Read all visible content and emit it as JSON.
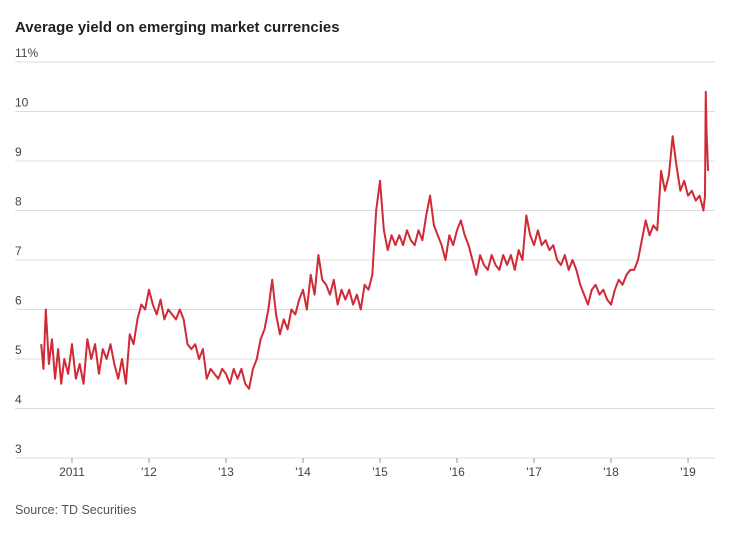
{
  "chart_data": {
    "type": "line",
    "title": "Average yield on emerging market currencies",
    "source": "Source: TD Securities",
    "xlim": [
      2010.26,
      2019.35
    ],
    "xticks": [
      {
        "value": 2011,
        "label": "2011"
      },
      {
        "value": 2012,
        "label": "'12"
      },
      {
        "value": 2013,
        "label": "'13"
      },
      {
        "value": 2014,
        "label": "'14"
      },
      {
        "value": 2015,
        "label": "'15"
      },
      {
        "value": 2016,
        "label": "'16"
      },
      {
        "value": 2017,
        "label": "'17"
      },
      {
        "value": 2018,
        "label": "'18"
      },
      {
        "value": 2019,
        "label": "'19"
      }
    ],
    "ylim": [
      3,
      11
    ],
    "yticks": [
      3,
      4,
      5,
      6,
      7,
      8,
      9,
      10,
      {
        "value": 11,
        "label": "11%"
      }
    ],
    "grid": true,
    "series": [
      {
        "color": "#cf2a35",
        "x": [
          2010.6,
          2010.63,
          2010.66,
          2010.7,
          2010.74,
          2010.78,
          2010.82,
          2010.86,
          2010.9,
          2010.95,
          2011.0,
          2011.05,
          2011.1,
          2011.15,
          2011.2,
          2011.25,
          2011.3,
          2011.35,
          2011.4,
          2011.45,
          2011.5,
          2011.55,
          2011.6,
          2011.65,
          2011.7,
          2011.75,
          2011.8,
          2011.85,
          2011.9,
          2011.95,
          2012.0,
          2012.05,
          2012.1,
          2012.15,
          2012.2,
          2012.25,
          2012.3,
          2012.35,
          2012.4,
          2012.45,
          2012.5,
          2012.55,
          2012.6,
          2012.65,
          2012.7,
          2012.75,
          2012.8,
          2012.85,
          2012.9,
          2012.95,
          2013.0,
          2013.05,
          2013.1,
          2013.15,
          2013.2,
          2013.25,
          2013.3,
          2013.35,
          2013.4,
          2013.45,
          2013.5,
          2013.55,
          2013.6,
          2013.65,
          2013.7,
          2013.75,
          2013.8,
          2013.85,
          2013.9,
          2013.95,
          2014.0,
          2014.05,
          2014.1,
          2014.15,
          2014.2,
          2014.25,
          2014.3,
          2014.35,
          2014.4,
          2014.45,
          2014.5,
          2014.55,
          2014.6,
          2014.65,
          2014.7,
          2014.75,
          2014.8,
          2014.85,
          2014.9,
          2014.95,
          2015.0,
          2015.05,
          2015.1,
          2015.15,
          2015.2,
          2015.25,
          2015.3,
          2015.35,
          2015.4,
          2015.45,
          2015.5,
          2015.55,
          2015.6,
          2015.65,
          2015.7,
          2015.75,
          2015.8,
          2015.85,
          2015.9,
          2015.95,
          2016.0,
          2016.05,
          2016.1,
          2016.15,
          2016.2,
          2016.25,
          2016.3,
          2016.35,
          2016.4,
          2016.45,
          2016.5,
          2016.55,
          2016.6,
          2016.65,
          2016.7,
          2016.75,
          2016.8,
          2016.85,
          2016.9,
          2016.95,
          2017.0,
          2017.05,
          2017.1,
          2017.15,
          2017.2,
          2017.25,
          2017.3,
          2017.35,
          2017.4,
          2017.45,
          2017.5,
          2017.55,
          2017.6,
          2017.65,
          2017.7,
          2017.75,
          2017.8,
          2017.85,
          2017.9,
          2017.95,
          2018.0,
          2018.05,
          2018.1,
          2018.15,
          2018.2,
          2018.25,
          2018.3,
          2018.35,
          2018.4,
          2018.45,
          2018.5,
          2018.55,
          2018.6,
          2018.65,
          2018.7,
          2018.75,
          2018.8,
          2018.85,
          2018.9,
          2018.95,
          2019.0,
          2019.05,
          2019.1,
          2019.15,
          2019.2,
          2019.22,
          2019.23,
          2019.24,
          2019.26
        ],
        "values": [
          5.3,
          4.8,
          6.0,
          4.9,
          5.4,
          4.6,
          5.2,
          4.5,
          5.0,
          4.7,
          5.3,
          4.6,
          4.9,
          4.5,
          5.4,
          5.0,
          5.3,
          4.7,
          5.2,
          5.0,
          5.3,
          4.9,
          4.6,
          5.0,
          4.5,
          5.5,
          5.3,
          5.8,
          6.1,
          6.0,
          6.4,
          6.1,
          5.9,
          6.2,
          5.8,
          6.0,
          5.9,
          5.8,
          6.0,
          5.8,
          5.3,
          5.2,
          5.3,
          5.0,
          5.2,
          4.6,
          4.8,
          4.7,
          4.6,
          4.8,
          4.7,
          4.5,
          4.8,
          4.6,
          4.8,
          4.5,
          4.4,
          4.8,
          5.0,
          5.4,
          5.6,
          6.0,
          6.6,
          5.9,
          5.5,
          5.8,
          5.6,
          6.0,
          5.9,
          6.2,
          6.4,
          6.0,
          6.7,
          6.3,
          7.1,
          6.6,
          6.5,
          6.3,
          6.6,
          6.1,
          6.4,
          6.2,
          6.4,
          6.1,
          6.3,
          6.0,
          6.5,
          6.4,
          6.7,
          8.0,
          8.6,
          7.6,
          7.2,
          7.5,
          7.3,
          7.5,
          7.3,
          7.6,
          7.4,
          7.3,
          7.6,
          7.4,
          7.9,
          8.3,
          7.7,
          7.5,
          7.3,
          7.0,
          7.5,
          7.3,
          7.6,
          7.8,
          7.5,
          7.3,
          7.0,
          6.7,
          7.1,
          6.9,
          6.8,
          7.1,
          6.9,
          6.8,
          7.1,
          6.9,
          7.1,
          6.8,
          7.2,
          7.0,
          7.9,
          7.5,
          7.3,
          7.6,
          7.3,
          7.4,
          7.2,
          7.3,
          7.0,
          6.9,
          7.1,
          6.8,
          7.0,
          6.8,
          6.5,
          6.3,
          6.1,
          6.4,
          6.5,
          6.3,
          6.4,
          6.2,
          6.1,
          6.4,
          6.6,
          6.5,
          6.7,
          6.8,
          6.8,
          7.0,
          7.4,
          7.8,
          7.5,
          7.7,
          7.6,
          8.8,
          8.4,
          8.7,
          9.5,
          8.9,
          8.4,
          8.6,
          8.3,
          8.4,
          8.2,
          8.3,
          8.0,
          8.3,
          10.4,
          9.6,
          8.8
        ]
      }
    ]
  }
}
